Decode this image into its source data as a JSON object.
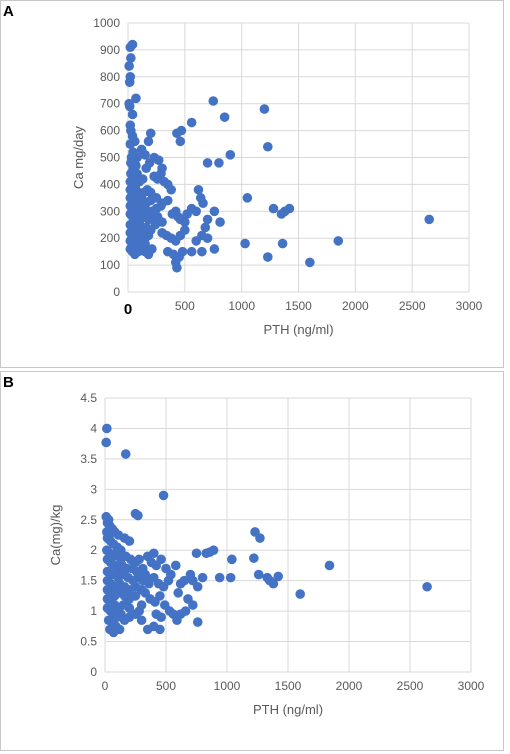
{
  "colors": {
    "marker": "#4472C4",
    "grid": "#d9d9d9",
    "text": "#595959"
  },
  "chart_data": [
    {
      "panel": "A",
      "type": "scatter",
      "xlabel": "PTH (ng/ml)",
      "ylabel": "Ca mg/day",
      "xlim": [
        0,
        3000
      ],
      "ylim": [
        0,
        1000
      ],
      "xticks": [
        0,
        500,
        1000,
        1500,
        2000,
        2500,
        3000
      ],
      "yticks": [
        0,
        100,
        200,
        300,
        400,
        500,
        600,
        700,
        800,
        900,
        1000
      ],
      "grid": true,
      "points": [
        [
          20,
          910
        ],
        [
          40,
          920
        ],
        [
          25,
          870
        ],
        [
          10,
          840
        ],
        [
          20,
          800
        ],
        [
          15,
          780
        ],
        [
          10,
          700
        ],
        [
          15,
          690
        ],
        [
          70,
          720
        ],
        [
          40,
          660
        ],
        [
          20,
          620
        ],
        [
          25,
          600
        ],
        [
          40,
          580
        ],
        [
          60,
          560
        ],
        [
          20,
          550
        ],
        [
          45,
          520
        ],
        [
          30,
          500
        ],
        [
          60,
          500
        ],
        [
          80,
          500
        ],
        [
          25,
          480
        ],
        [
          45,
          460
        ],
        [
          70,
          470
        ],
        [
          25,
          440
        ],
        [
          50,
          430
        ],
        [
          80,
          440
        ],
        [
          20,
          410
        ],
        [
          40,
          400
        ],
        [
          70,
          400
        ],
        [
          100,
          410
        ],
        [
          130,
          420
        ],
        [
          20,
          380
        ],
        [
          40,
          370
        ],
        [
          70,
          380
        ],
        [
          90,
          370
        ],
        [
          110,
          360
        ],
        [
          140,
          370
        ],
        [
          170,
          380
        ],
        [
          200,
          370
        ],
        [
          20,
          350
        ],
        [
          45,
          340
        ],
        [
          70,
          350
        ],
        [
          100,
          340
        ],
        [
          130,
          340
        ],
        [
          160,
          330
        ],
        [
          200,
          340
        ],
        [
          240,
          350
        ],
        [
          20,
          320
        ],
        [
          40,
          310
        ],
        [
          60,
          320
        ],
        [
          80,
          310
        ],
        [
          110,
          300
        ],
        [
          140,
          310
        ],
        [
          170,
          300
        ],
        [
          210,
          300
        ],
        [
          250,
          310
        ],
        [
          290,
          320
        ],
        [
          20,
          290
        ],
        [
          40,
          280
        ],
        [
          60,
          270
        ],
        [
          80,
          280
        ],
        [
          110,
          270
        ],
        [
          140,
          280
        ],
        [
          180,
          270
        ],
        [
          220,
          270
        ],
        [
          260,
          280
        ],
        [
          300,
          260
        ],
        [
          20,
          250
        ],
        [
          40,
          240
        ],
        [
          60,
          230
        ],
        [
          80,
          240
        ],
        [
          100,
          250
        ],
        [
          130,
          230
        ],
        [
          160,
          240
        ],
        [
          200,
          230
        ],
        [
          240,
          250
        ],
        [
          20,
          220
        ],
        [
          45,
          210
        ],
        [
          70,
          200
        ],
        [
          90,
          220
        ],
        [
          120,
          210
        ],
        [
          150,
          200
        ],
        [
          180,
          210
        ],
        [
          20,
          190
        ],
        [
          40,
          180
        ],
        [
          60,
          170
        ],
        [
          90,
          180
        ],
        [
          120,
          170
        ],
        [
          150,
          180
        ],
        [
          20,
          160
        ],
        [
          40,
          150
        ],
        [
          60,
          140
        ],
        [
          90,
          150
        ],
        [
          120,
          160
        ],
        [
          150,
          150
        ],
        [
          180,
          140
        ],
        [
          210,
          160
        ],
        [
          120,
          530
        ],
        [
          150,
          510
        ],
        [
          180,
          560
        ],
        [
          200,
          590
        ],
        [
          160,
          460
        ],
        [
          190,
          480
        ],
        [
          230,
          500
        ],
        [
          270,
          490
        ],
        [
          300,
          460
        ],
        [
          230,
          430
        ],
        [
          260,
          420
        ],
        [
          290,
          440
        ],
        [
          320,
          410
        ],
        [
          350,
          400
        ],
        [
          380,
          380
        ],
        [
          250,
          350
        ],
        [
          300,
          330
        ],
        [
          350,
          340
        ],
        [
          390,
          290
        ],
        [
          420,
          300
        ],
        [
          440,
          280
        ],
        [
          460,
          270
        ],
        [
          500,
          260
        ],
        [
          300,
          220
        ],
        [
          340,
          210
        ],
        [
          380,
          200
        ],
        [
          420,
          190
        ],
        [
          460,
          210
        ],
        [
          500,
          230
        ],
        [
          350,
          150
        ],
        [
          400,
          140
        ],
        [
          450,
          130
        ],
        [
          480,
          150
        ],
        [
          420,
          110
        ],
        [
          430,
          90
        ],
        [
          430,
          590
        ],
        [
          470,
          600
        ],
        [
          460,
          560
        ],
        [
          560,
          630
        ],
        [
          620,
          380
        ],
        [
          640,
          350
        ],
        [
          660,
          330
        ],
        [
          600,
          300
        ],
        [
          560,
          310
        ],
        [
          520,
          290
        ],
        [
          700,
          480
        ],
        [
          800,
          480
        ],
        [
          760,
          300
        ],
        [
          810,
          260
        ],
        [
          700,
          270
        ],
        [
          680,
          240
        ],
        [
          650,
          210
        ],
        [
          700,
          200
        ],
        [
          600,
          190
        ],
        [
          650,
          150
        ],
        [
          760,
          160
        ],
        [
          560,
          150
        ],
        [
          750,
          710
        ],
        [
          850,
          650
        ],
        [
          900,
          510
        ],
        [
          1200,
          680
        ],
        [
          1230,
          540
        ],
        [
          1050,
          350
        ],
        [
          1030,
          180
        ],
        [
          1230,
          130
        ],
        [
          1280,
          310
        ],
        [
          1350,
          290
        ],
        [
          1380,
          300
        ],
        [
          1420,
          310
        ],
        [
          1360,
          180
        ],
        [
          1600,
          110
        ],
        [
          1850,
          190
        ],
        [
          2650,
          270
        ]
      ]
    },
    {
      "panel": "B",
      "type": "scatter",
      "xlabel": "PTH (ng/ml)",
      "ylabel": "Ca(mg)/kg",
      "xlim": [
        0,
        3000
      ],
      "ylim": [
        0,
        4.5
      ],
      "xticks": [
        0,
        500,
        1000,
        1500,
        2000,
        2500,
        3000
      ],
      "yticks": [
        0,
        0.5,
        1,
        1.5,
        2,
        2.5,
        3,
        3.5,
        4,
        4.5
      ],
      "grid": true,
      "points": [
        [
          15,
          4.0
        ],
        [
          10,
          3.77
        ],
        [
          170,
          3.58
        ],
        [
          480,
          2.9
        ],
        [
          10,
          2.55
        ],
        [
          30,
          2.5
        ],
        [
          250,
          2.6
        ],
        [
          270,
          2.57
        ],
        [
          20,
          2.45
        ],
        [
          40,
          2.4
        ],
        [
          60,
          2.35
        ],
        [
          15,
          2.3
        ],
        [
          35,
          2.25
        ],
        [
          80,
          2.3
        ],
        [
          110,
          2.25
        ],
        [
          20,
          2.2
        ],
        [
          45,
          2.15
        ],
        [
          70,
          2.1
        ],
        [
          100,
          2.05
        ],
        [
          130,
          2.0
        ],
        [
          160,
          2.2
        ],
        [
          200,
          2.15
        ],
        [
          15,
          2.0
        ],
        [
          40,
          1.95
        ],
        [
          70,
          1.9
        ],
        [
          100,
          1.95
        ],
        [
          130,
          1.85
        ],
        [
          170,
          1.9
        ],
        [
          210,
          1.85
        ],
        [
          250,
          1.8
        ],
        [
          20,
          1.85
        ],
        [
          45,
          1.8
        ],
        [
          75,
          1.75
        ],
        [
          110,
          1.7
        ],
        [
          140,
          1.75
        ],
        [
          180,
          1.7
        ],
        [
          220,
          1.7
        ],
        [
          260,
          1.65
        ],
        [
          20,
          1.65
        ],
        [
          50,
          1.6
        ],
        [
          80,
          1.6
        ],
        [
          110,
          1.55
        ],
        [
          150,
          1.6
        ],
        [
          190,
          1.55
        ],
        [
          230,
          1.5
        ],
        [
          270,
          1.55
        ],
        [
          310,
          1.5
        ],
        [
          20,
          1.5
        ],
        [
          50,
          1.45
        ],
        [
          80,
          1.4
        ],
        [
          120,
          1.45
        ],
        [
          160,
          1.4
        ],
        [
          200,
          1.35
        ],
        [
          250,
          1.4
        ],
        [
          300,
          1.35
        ],
        [
          20,
          1.35
        ],
        [
          50,
          1.3
        ],
        [
          80,
          1.25
        ],
        [
          120,
          1.3
        ],
        [
          160,
          1.25
        ],
        [
          200,
          1.2
        ],
        [
          250,
          1.25
        ],
        [
          20,
          1.2
        ],
        [
          50,
          1.15
        ],
        [
          80,
          1.1
        ],
        [
          110,
          1.05
        ],
        [
          150,
          1.1
        ],
        [
          200,
          1.05
        ],
        [
          20,
          1.05
        ],
        [
          45,
          1.0
        ],
        [
          70,
          0.95
        ],
        [
          100,
          0.9
        ],
        [
          130,
          0.95
        ],
        [
          160,
          0.85
        ],
        [
          200,
          0.9
        ],
        [
          30,
          0.85
        ],
        [
          60,
          0.8
        ],
        [
          90,
          0.75
        ],
        [
          120,
          0.7
        ],
        [
          40,
          0.7
        ],
        [
          70,
          0.65
        ],
        [
          280,
          1.85
        ],
        [
          310,
          1.7
        ],
        [
          350,
          1.9
        ],
        [
          380,
          1.8
        ],
        [
          420,
          1.75
        ],
        [
          460,
          1.85
        ],
        [
          500,
          1.7
        ],
        [
          540,
          1.6
        ],
        [
          580,
          1.75
        ],
        [
          330,
          1.6
        ],
        [
          360,
          1.5
        ],
        [
          400,
          1.55
        ],
        [
          440,
          1.45
        ],
        [
          480,
          1.4
        ],
        [
          520,
          1.5
        ],
        [
          330,
          1.3
        ],
        [
          370,
          1.2
        ],
        [
          410,
          1.15
        ],
        [
          450,
          1.25
        ],
        [
          490,
          1.1
        ],
        [
          530,
          1.0
        ],
        [
          420,
          0.95
        ],
        [
          460,
          0.9
        ],
        [
          400,
          0.75
        ],
        [
          450,
          0.7
        ],
        [
          350,
          0.7
        ],
        [
          300,
          0.85
        ],
        [
          400,
          1.95
        ],
        [
          360,
          1.45
        ],
        [
          250,
          0.95
        ],
        [
          280,
          1.0
        ],
        [
          300,
          1.1
        ],
        [
          620,
          1.45
        ],
        [
          650,
          1.5
        ],
        [
          700,
          1.6
        ],
        [
          720,
          1.5
        ],
        [
          760,
          1.4
        ],
        [
          800,
          1.55
        ],
        [
          680,
          1.2
        ],
        [
          720,
          1.1
        ],
        [
          660,
          1.0
        ],
        [
          620,
          0.95
        ],
        [
          560,
          0.95
        ],
        [
          590,
          0.85
        ],
        [
          760,
          0.82
        ],
        [
          600,
          1.3
        ],
        [
          750,
          1.95
        ],
        [
          830,
          1.95
        ],
        [
          860,
          1.97
        ],
        [
          890,
          2.0
        ],
        [
          940,
          1.55
        ],
        [
          1040,
          1.85
        ],
        [
          1030,
          1.55
        ],
        [
          1230,
          2.3
        ],
        [
          1270,
          2.2
        ],
        [
          1220,
          1.87
        ],
        [
          1260,
          1.6
        ],
        [
          1330,
          1.55
        ],
        [
          1350,
          1.5
        ],
        [
          1380,
          1.45
        ],
        [
          1420,
          1.57
        ],
        [
          1600,
          1.28
        ],
        [
          1840,
          1.75
        ],
        [
          2640,
          1.4
        ]
      ]
    }
  ],
  "panels": [
    {
      "letter": "A"
    },
    {
      "letter": "B"
    }
  ]
}
